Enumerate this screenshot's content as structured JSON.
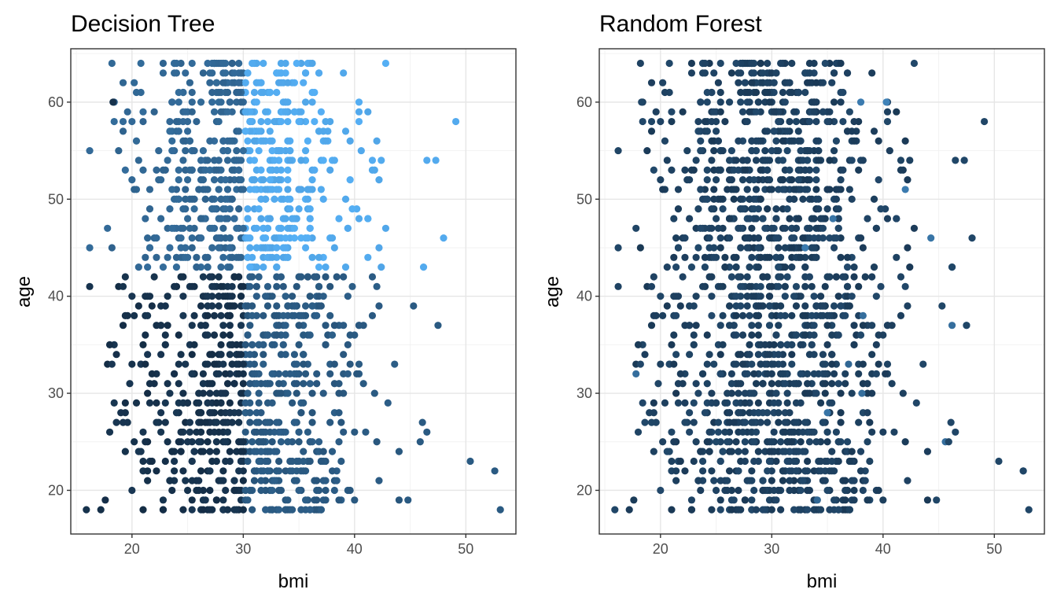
{
  "chart_data": [
    {
      "type": "scatter",
      "title": "Decision Tree",
      "xlabel": "bmi",
      "ylabel": "age",
      "xlim": [
        14.5,
        54.5
      ],
      "ylim": [
        15.5,
        65.5
      ],
      "xticks": [
        20,
        30,
        40,
        50
      ],
      "yticks": [
        20,
        30,
        40,
        50,
        60
      ],
      "grid": true,
      "legend": "none",
      "color_scale": {
        "low": "#132b43",
        "high": "#56b1f7"
      },
      "regions": [
        {
          "bmi_min": 15.5,
          "bmi_max": 30.0,
          "age_min": 18,
          "age_max": 42,
          "predicted_level": 0.05
        },
        {
          "bmi_min": 30.0,
          "bmi_max": 53.5,
          "age_min": 18,
          "age_max": 42,
          "predicted_level": 0.35
        },
        {
          "bmi_min": 15.5,
          "bmi_max": 30.0,
          "age_min": 43,
          "age_max": 64,
          "predicted_level": 0.45
        },
        {
          "bmi_min": 30.0,
          "bmi_max": 53.5,
          "age_min": 43,
          "age_max": 64,
          "predicted_level": 0.95
        }
      ],
      "outliers": [
        {
          "x": 50.4,
          "y": 23
        },
        {
          "x": 52.6,
          "y": 22
        },
        {
          "x": 53.1,
          "y": 18
        },
        {
          "x": 49.1,
          "y": 58
        },
        {
          "x": 46.5,
          "y": 54
        },
        {
          "x": 47.3,
          "y": 54
        },
        {
          "x": 46.2,
          "y": 43
        },
        {
          "x": 48.0,
          "y": 46
        },
        {
          "x": 47.5,
          "y": 37
        },
        {
          "x": 45.3,
          "y": 39
        },
        {
          "x": 46.1,
          "y": 27
        },
        {
          "x": 46.5,
          "y": 26
        },
        {
          "x": 45.9,
          "y": 25
        },
        {
          "x": 44.8,
          "y": 19
        },
        {
          "x": 15.9,
          "y": 18
        },
        {
          "x": 18.3,
          "y": 60
        }
      ]
    },
    {
      "type": "scatter",
      "title": "Random Forest",
      "xlabel": "bmi",
      "ylabel": "age",
      "xlim": [
        14.5,
        54.5
      ],
      "ylim": [
        15.5,
        65.5
      ],
      "xticks": [
        20,
        30,
        40,
        50
      ],
      "yticks": [
        20,
        30,
        40,
        50,
        60
      ],
      "grid": true,
      "legend": "none",
      "color_scale": {
        "low": "#132b43",
        "high": "#56b1f7"
      },
      "regions": [
        {
          "bmi_min": 15.5,
          "bmi_max": 53.5,
          "age_min": 18,
          "age_max": 64,
          "predicted_level": 0.15
        }
      ],
      "highlighted": [
        {
          "x": 33.0,
          "y": 45,
          "level": 0.6
        },
        {
          "x": 35.5,
          "y": 48,
          "level": 0.55
        },
        {
          "x": 38.0,
          "y": 60,
          "level": 0.6
        },
        {
          "x": 40.3,
          "y": 60,
          "level": 0.65
        },
        {
          "x": 42.0,
          "y": 51,
          "level": 0.6
        },
        {
          "x": 44.3,
          "y": 46,
          "level": 0.55
        },
        {
          "x": 46.2,
          "y": 43,
          "level": 0.55
        },
        {
          "x": 47.3,
          "y": 54,
          "level": 0.6
        },
        {
          "x": 47.5,
          "y": 37,
          "level": 0.6
        },
        {
          "x": 46.2,
          "y": 37,
          "level": 0.5
        },
        {
          "x": 52.6,
          "y": 22,
          "level": 0.45
        },
        {
          "x": 45.6,
          "y": 25,
          "level": 0.5
        },
        {
          "x": 35.0,
          "y": 28,
          "level": 0.55
        },
        {
          "x": 38.1,
          "y": 30,
          "level": 0.5
        },
        {
          "x": 36.9,
          "y": 33,
          "level": 0.45
        },
        {
          "x": 17.8,
          "y": 32,
          "level": 0.5
        },
        {
          "x": 34.1,
          "y": 19,
          "level": 0.45
        },
        {
          "x": 38.2,
          "y": 38,
          "level": 0.5
        }
      ],
      "outliers": [
        {
          "x": 50.4,
          "y": 23
        },
        {
          "x": 52.6,
          "y": 22
        },
        {
          "x": 53.1,
          "y": 18
        },
        {
          "x": 49.1,
          "y": 58
        },
        {
          "x": 46.5,
          "y": 54
        },
        {
          "x": 47.3,
          "y": 54
        },
        {
          "x": 46.2,
          "y": 43
        },
        {
          "x": 48.0,
          "y": 46
        },
        {
          "x": 47.5,
          "y": 37
        },
        {
          "x": 45.3,
          "y": 39
        },
        {
          "x": 46.1,
          "y": 27
        },
        {
          "x": 46.5,
          "y": 26
        },
        {
          "x": 45.9,
          "y": 25
        },
        {
          "x": 44.8,
          "y": 19
        },
        {
          "x": 15.9,
          "y": 18
        },
        {
          "x": 18.3,
          "y": 60
        }
      ]
    }
  ]
}
